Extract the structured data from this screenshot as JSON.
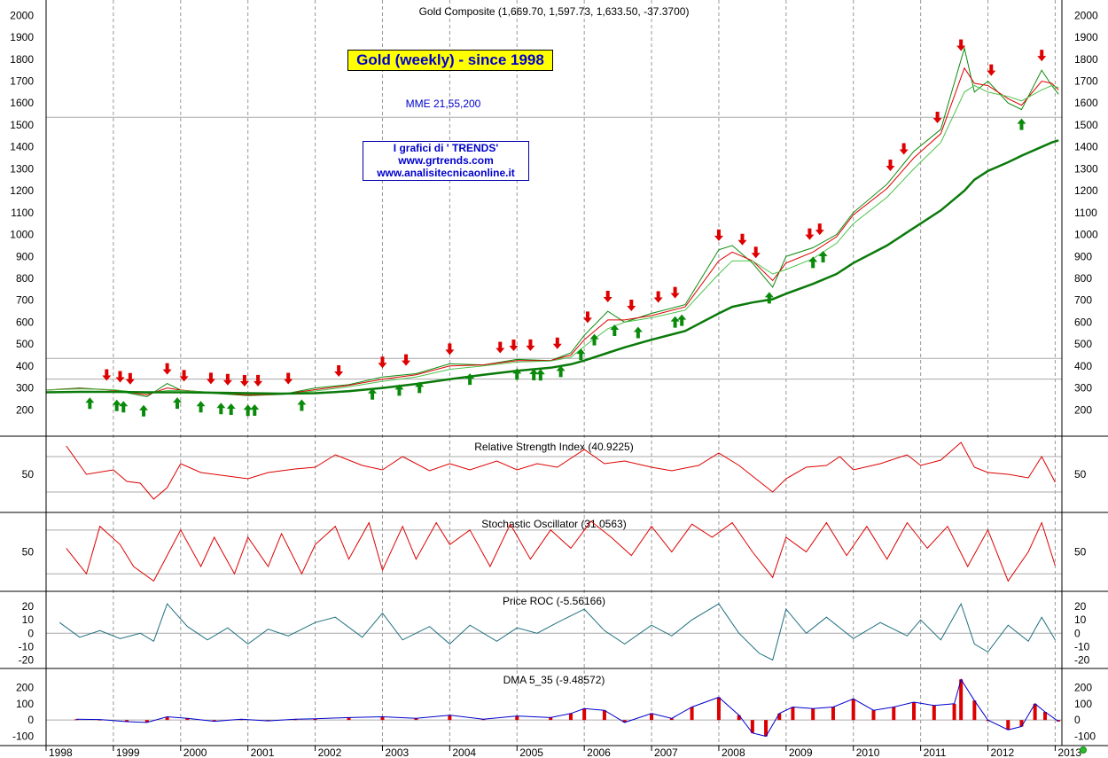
{
  "chart_data": [
    {
      "type": "line",
      "title": "Gold Composite (1,669.70, 1,597.73, 1,633.50, -37.3700)",
      "yticks": [
        200,
        300,
        400,
        500,
        600,
        700,
        800,
        900,
        1000,
        1100,
        1200,
        1300,
        1400,
        1500,
        1600,
        1700,
        1800,
        1900,
        2000
      ],
      "ylim": [
        100,
        2050
      ],
      "x": [
        1998.0,
        1998.5,
        1999.0,
        1999.5,
        1999.8,
        2000.0,
        2000.5,
        2001.0,
        2001.5,
        2002.0,
        2002.5,
        2003.0,
        2003.5,
        2004.0,
        2004.5,
        2005.0,
        2005.5,
        2005.8,
        2006.0,
        2006.35,
        2006.6,
        2007.0,
        2007.5,
        2008.0,
        2008.2,
        2008.5,
        2008.8,
        2009.0,
        2009.4,
        2009.75,
        2010.0,
        2010.5,
        2010.9,
        2011.3,
        2011.65,
        2011.8,
        2012.0,
        2012.3,
        2012.5,
        2012.8,
        2012.95,
        2013.05
      ],
      "series": [
        {
          "values": [
            290,
            300,
            290,
            260,
            320,
            290,
            275,
            265,
            270,
            300,
            315,
            350,
            365,
            410,
            405,
            430,
            425,
            460,
            540,
            650,
            600,
            640,
            680,
            930,
            950,
            870,
            760,
            900,
            940,
            1000,
            1100,
            1230,
            1380,
            1480,
            1850,
            1650,
            1700,
            1600,
            1570,
            1750,
            1680,
            1640
          ],
          "color": "#0a8a0a"
        },
        {
          "values": [
            290,
            298,
            290,
            268,
            300,
            290,
            278,
            268,
            270,
            292,
            312,
            340,
            360,
            400,
            405,
            425,
            425,
            450,
            520,
            610,
            610,
            630,
            670,
            880,
            920,
            880,
            790,
            870,
            920,
            990,
            1090,
            1210,
            1350,
            1460,
            1760,
            1690,
            1680,
            1620,
            1590,
            1700,
            1690,
            1660
          ],
          "color": "#dd0000"
        },
        {
          "values": [
            290,
            296,
            292,
            275,
            288,
            288,
            280,
            272,
            270,
            286,
            305,
            330,
            350,
            385,
            400,
            418,
            423,
            440,
            490,
            570,
            600,
            620,
            655,
            820,
            880,
            880,
            820,
            840,
            890,
            960,
            1050,
            1170,
            1300,
            1420,
            1650,
            1680,
            1650,
            1630,
            1610,
            1660,
            1680,
            1670
          ],
          "color": "#4cc24c"
        },
        {
          "values": [
            280,
            282,
            282,
            280,
            280,
            280,
            278,
            276,
            274,
            276,
            285,
            300,
            318,
            340,
            360,
            378,
            392,
            408,
            425,
            460,
            485,
            520,
            560,
            640,
            670,
            690,
            705,
            730,
            775,
            820,
            870,
            950,
            1030,
            1110,
            1200,
            1250,
            1290,
            1330,
            1360,
            1400,
            1420,
            1430
          ],
          "color": "#0a7a0a"
        }
      ],
      "hlines": [
        1535,
        435,
        340
      ],
      "buy_signals": [
        1998.65,
        1999.05,
        1999.15,
        1999.45,
        1999.95,
        2000.3,
        2000.6,
        2000.75,
        2001.0,
        2001.1,
        2001.8,
        2002.85,
        2003.25,
        2003.55,
        2004.3,
        2005.0,
        2005.25,
        2005.35,
        2005.65,
        2005.95,
        2006.15,
        2006.45,
        2006.8,
        2007.35,
        2007.45,
        2008.75,
        2009.4,
        2009.55,
        2012.5
      ],
      "sell_signals": [
        1998.9,
        1999.1,
        1999.25,
        1999.8,
        2000.05,
        2000.45,
        2000.7,
        2000.95,
        2001.15,
        2001.6,
        2002.35,
        2003.0,
        2003.35,
        2004.0,
        2004.75,
        2004.95,
        2005.2,
        2005.6,
        2006.05,
        2006.35,
        2006.7,
        2007.1,
        2007.35,
        2008.0,
        2008.35,
        2008.55,
        2009.35,
        2009.5,
        2010.55,
        2010.75,
        2011.25,
        2011.6,
        2012.05,
        2012.8
      ]
    },
    {
      "type": "line",
      "title": "Relative Strength Index (40.9225)",
      "yticks": [
        50
      ],
      "ylim": [
        12,
        88
      ],
      "guide_lines": [
        70,
        30
      ],
      "x": [
        1998.3,
        1998.6,
        1999.0,
        1999.2,
        1999.4,
        1999.6,
        1999.8,
        2000.0,
        2000.3,
        2000.7,
        2001.0,
        2001.3,
        2001.7,
        2002.0,
        2002.3,
        2002.7,
        2003.0,
        2003.3,
        2003.7,
        2004.0,
        2004.3,
        2004.7,
        2005.0,
        2005.3,
        2005.6,
        2006.0,
        2006.3,
        2006.6,
        2007.0,
        2007.3,
        2007.7,
        2008.0,
        2008.3,
        2008.6,
        2008.8,
        2009.0,
        2009.3,
        2009.6,
        2009.8,
        2010.0,
        2010.4,
        2010.8,
        2011.0,
        2011.3,
        2011.6,
        2011.8,
        2012.0,
        2012.3,
        2012.6,
        2012.8,
        2013.0
      ],
      "series": [
        {
          "values": [
            82,
            50,
            55,
            42,
            40,
            22,
            35,
            62,
            52,
            48,
            45,
            52,
            56,
            58,
            72,
            60,
            55,
            70,
            54,
            62,
            55,
            65,
            55,
            62,
            58,
            78,
            62,
            65,
            58,
            54,
            60,
            74,
            60,
            42,
            30,
            45,
            58,
            60,
            70,
            55,
            62,
            72,
            60,
            66,
            86,
            58,
            52,
            50,
            46,
            70,
            41
          ],
          "color": "#dd0000"
        }
      ]
    },
    {
      "type": "line",
      "title": "Stochastic Oscillator (31.0563)",
      "yticks": [
        50
      ],
      "ylim": [
        2,
        98
      ],
      "guide_lines": [
        80,
        20
      ],
      "x": [
        1998.3,
        1998.6,
        1998.8,
        1999.1,
        1999.3,
        1999.6,
        1999.8,
        2000.0,
        2000.3,
        2000.5,
        2000.8,
        2001.0,
        2001.3,
        2001.5,
        2001.8,
        2002.0,
        2002.3,
        2002.5,
        2002.8,
        2003.0,
        2003.3,
        2003.5,
        2003.8,
        2004.0,
        2004.3,
        2004.6,
        2004.9,
        2005.2,
        2005.5,
        2005.8,
        2006.1,
        2006.4,
        2006.7,
        2007.0,
        2007.3,
        2007.6,
        2007.9,
        2008.2,
        2008.5,
        2008.8,
        2009.0,
        2009.3,
        2009.6,
        2009.9,
        2010.2,
        2010.5,
        2010.8,
        2011.1,
        2011.4,
        2011.7,
        2012.0,
        2012.3,
        2012.6,
        2012.8,
        2013.0
      ],
      "series": [
        {
          "values": [
            55,
            20,
            85,
            60,
            30,
            10,
            45,
            80,
            30,
            70,
            20,
            70,
            30,
            75,
            20,
            60,
            85,
            40,
            90,
            25,
            85,
            40,
            90,
            60,
            80,
            30,
            88,
            40,
            80,
            55,
            92,
            70,
            45,
            85,
            50,
            88,
            70,
            90,
            50,
            15,
            70,
            50,
            90,
            45,
            85,
            40,
            90,
            55,
            85,
            30,
            80,
            10,
            50,
            90,
            31
          ],
          "color": "#dd0000"
        }
      ]
    },
    {
      "type": "line",
      "title": "Price ROC (-5.56166)",
      "yticks": [
        -20,
        -10,
        0,
        10,
        20
      ],
      "ylim": [
        -23,
        28
      ],
      "x": [
        1998.2,
        1998.5,
        1998.8,
        1999.1,
        1999.4,
        1999.6,
        1999.8,
        2000.1,
        2000.4,
        2000.7,
        2001.0,
        2001.3,
        2001.6,
        2002.0,
        2002.3,
        2002.7,
        2003.0,
        2003.3,
        2003.7,
        2004.0,
        2004.3,
        2004.7,
        2005.0,
        2005.3,
        2005.6,
        2006.0,
        2006.3,
        2006.6,
        2007.0,
        2007.3,
        2007.6,
        2008.0,
        2008.3,
        2008.6,
        2008.8,
        2009.0,
        2009.3,
        2009.6,
        2010.0,
        2010.4,
        2010.8,
        2011.0,
        2011.3,
        2011.6,
        2011.8,
        2012.0,
        2012.3,
        2012.6,
        2012.8,
        2013.0
      ],
      "series": [
        {
          "values": [
            8,
            -3,
            2,
            -4,
            0,
            -6,
            22,
            5,
            -5,
            4,
            -8,
            3,
            -2,
            8,
            12,
            -3,
            15,
            -5,
            5,
            -8,
            6,
            -6,
            4,
            0,
            8,
            18,
            2,
            -8,
            6,
            -2,
            10,
            22,
            0,
            -15,
            -20,
            18,
            0,
            12,
            -4,
            8,
            -2,
            10,
            -5,
            22,
            -8,
            -14,
            6,
            -6,
            12,
            -5
          ],
          "color": "#1f6f7f"
        }
      ]
    },
    {
      "type": "bar",
      "title": "DMA 5_35 (-9.48572)",
      "yticks": [
        -100,
        0,
        100,
        200
      ],
      "ylim": [
        -130,
        290
      ],
      "x": [
        1998.45,
        1998.8,
        1999.2,
        1999.5,
        1999.8,
        2000.1,
        2000.5,
        2000.9,
        2001.3,
        2001.7,
        2002.0,
        2002.5,
        2003.0,
        2003.5,
        2004.0,
        2004.5,
        2005.0,
        2005.5,
        2005.8,
        2006.0,
        2006.3,
        2006.6,
        2007.0,
        2007.3,
        2007.6,
        2008.0,
        2008.3,
        2008.5,
        2008.7,
        2008.9,
        2009.1,
        2009.4,
        2009.7,
        2010.0,
        2010.3,
        2010.6,
        2010.9,
        2011.2,
        2011.5,
        2011.6,
        2011.8,
        2012.0,
        2012.3,
        2012.5,
        2012.7,
        2012.85,
        2013.05
      ],
      "series": [
        {
          "values": [
            5,
            3,
            -10,
            -15,
            20,
            10,
            -8,
            5,
            -5,
            5,
            8,
            15,
            20,
            10,
            30,
            5,
            25,
            15,
            40,
            70,
            60,
            -15,
            40,
            10,
            80,
            140,
            30,
            -80,
            -100,
            40,
            80,
            70,
            80,
            130,
            60,
            80,
            110,
            90,
            100,
            250,
            120,
            0,
            -60,
            -40,
            100,
            50,
            -9
          ],
          "color": "#dd0000",
          "line_color": "#0000cc"
        }
      ]
    }
  ],
  "x_axis": {
    "labels": [
      "1998",
      "1999",
      "2000",
      "2001",
      "2002",
      "2003",
      "2004",
      "2005",
      "2006",
      "2007",
      "2008",
      "2009",
      "2010",
      "2011",
      "2012",
      "2013"
    ],
    "range": [
      1998.0,
      2013.1
    ]
  },
  "annotations": {
    "banner": "Gold (weekly) - since 1998",
    "mme": "MME 21,55,200",
    "credits": [
      "I grafici di ' TRENDS'",
      "www.grtrends.com",
      "www.analisitecnicaonline.it"
    ]
  },
  "colors": {
    "grid": "#999999",
    "panel_border": "#000000",
    "accent_blue": "#0000cc"
  }
}
